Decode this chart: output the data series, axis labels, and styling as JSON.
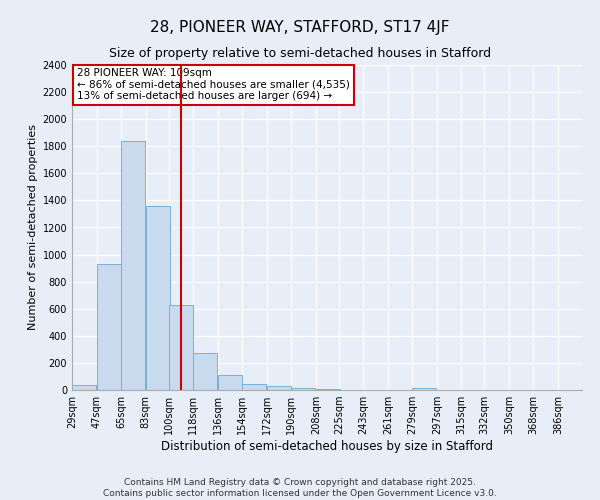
{
  "title1": "28, PIONEER WAY, STAFFORD, ST17 4JF",
  "title2": "Size of property relative to semi-detached houses in Stafford",
  "xlabel": "Distribution of semi-detached houses by size in Stafford",
  "ylabel": "Number of semi-detached properties",
  "values": [
    40,
    930,
    1840,
    1360,
    625,
    270,
    110,
    45,
    30,
    15,
    5,
    0,
    0,
    0,
    15,
    0,
    0,
    0,
    0,
    0,
    0
  ],
  "bar_color": "#c9d9ee",
  "bar_edge_color": "#7aafd4",
  "property_size": 109,
  "property_label": "28 PIONEER WAY: 109sqm",
  "pct_smaller": 86,
  "count_smaller": 4535,
  "pct_larger": 13,
  "count_larger": 694,
  "annotation_box_color": "#ffffff",
  "annotation_box_edge": "#cc0000",
  "vline_color": "#cc0000",
  "ylim": [
    0,
    2400
  ],
  "yticks": [
    0,
    200,
    400,
    600,
    800,
    1000,
    1200,
    1400,
    1600,
    1800,
    2000,
    2200,
    2400
  ],
  "bg_color": "#e8eef8",
  "grid_color": "#ffffff",
  "footnote1": "Contains HM Land Registry data © Crown copyright and database right 2025.",
  "footnote2": "Contains public sector information licensed under the Open Government Licence v3.0.",
  "title1_fontsize": 11,
  "title2_fontsize": 9,
  "xlabel_fontsize": 8.5,
  "ylabel_fontsize": 8,
  "tick_fontsize": 7,
  "annot_fontsize": 7.5,
  "footnote_fontsize": 6.5,
  "bin_width": 18,
  "bin_starts": [
    29,
    47,
    65,
    83,
    100,
    118,
    136,
    154,
    172,
    190,
    208,
    225,
    243,
    261,
    279,
    297,
    315,
    332,
    350,
    368,
    386
  ]
}
